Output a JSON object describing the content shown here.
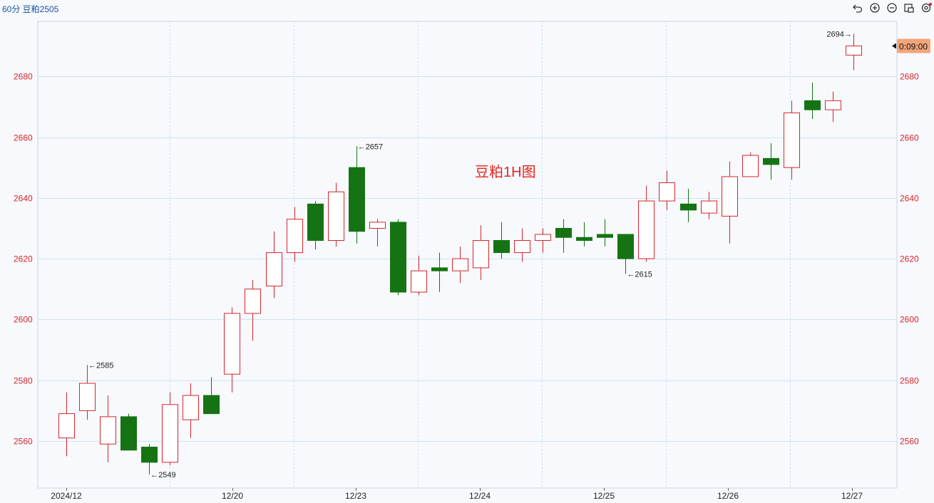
{
  "header": {
    "title": "60分 豆粕2505",
    "tools": [
      "undo-icon",
      "zoom-in-icon",
      "zoom-out-icon",
      "crop-icon",
      "settings-icon"
    ]
  },
  "watermark": "豆粕1H图",
  "colors": {
    "up": "#d4262c",
    "down": "#157313",
    "axis_text": "#d4262c",
    "date_text": "#222222",
    "grid": "#cfe3f2",
    "countdown_bg": "#f4a57c"
  },
  "countdown": "0:09:00",
  "chart_data": {
    "type": "candlestick",
    "y_ticks": [
      2560,
      2580,
      2600,
      2620,
      2640,
      2660,
      2680
    ],
    "x_labels": [
      "2024/12",
      "12/20",
      "12/23",
      "12/24",
      "12/25",
      "12/26",
      "12/27"
    ],
    "ylim": [
      2545,
      2696
    ],
    "grid": true,
    "candles": [
      {
        "o": 2561,
        "h": 2576,
        "l": 2555,
        "c": 2569
      },
      {
        "o": 2570,
        "h": 2585,
        "l": 2567,
        "c": 2579
      },
      {
        "o": 2559,
        "h": 2575,
        "l": 2553,
        "c": 2568
      },
      {
        "o": 2568,
        "h": 2569,
        "l": 2557,
        "c": 2557
      },
      {
        "o": 2558,
        "h": 2559,
        "l": 2549,
        "c": 2553
      },
      {
        "o": 2553,
        "h": 2576,
        "l": 2552,
        "c": 2572
      },
      {
        "o": 2567,
        "h": 2579,
        "l": 2561,
        "c": 2575
      },
      {
        "o": 2575,
        "h": 2581,
        "l": 2569,
        "c": 2569
      },
      {
        "o": 2582,
        "h": 2604,
        "l": 2576,
        "c": 2602
      },
      {
        "o": 2602,
        "h": 2613,
        "l": 2593,
        "c": 2610
      },
      {
        "o": 2611,
        "h": 2629,
        "l": 2607,
        "c": 2622
      },
      {
        "o": 2622,
        "h": 2637,
        "l": 2619,
        "c": 2633
      },
      {
        "o": 2638,
        "h": 2639,
        "l": 2623,
        "c": 2626
      },
      {
        "o": 2626,
        "h": 2645,
        "l": 2624,
        "c": 2642
      },
      {
        "o": 2650,
        "h": 2657,
        "l": 2625,
        "c": 2629
      },
      {
        "o": 2630,
        "h": 2633,
        "l": 2624,
        "c": 2632
      },
      {
        "o": 2632,
        "h": 2633,
        "l": 2608,
        "c": 2609
      },
      {
        "o": 2609,
        "h": 2621,
        "l": 2608,
        "c": 2616
      },
      {
        "o": 2617,
        "h": 2622,
        "l": 2609,
        "c": 2616
      },
      {
        "o": 2616,
        "h": 2624,
        "l": 2612,
        "c": 2620
      },
      {
        "o": 2617,
        "h": 2631,
        "l": 2613,
        "c": 2626
      },
      {
        "o": 2626,
        "h": 2632,
        "l": 2620,
        "c": 2622
      },
      {
        "o": 2622,
        "h": 2630,
        "l": 2619,
        "c": 2626
      },
      {
        "o": 2626,
        "h": 2630,
        "l": 2622,
        "c": 2628
      },
      {
        "o": 2630,
        "h": 2633,
        "l": 2622,
        "c": 2627
      },
      {
        "o": 2627,
        "h": 2632,
        "l": 2624,
        "c": 2626
      },
      {
        "o": 2628,
        "h": 2633,
        "l": 2624,
        "c": 2627
      },
      {
        "o": 2628,
        "h": 2628,
        "l": 2615,
        "c": 2620
      },
      {
        "o": 2620,
        "h": 2644,
        "l": 2619,
        "c": 2639
      },
      {
        "o": 2639,
        "h": 2649,
        "l": 2636,
        "c": 2645
      },
      {
        "o": 2638,
        "h": 2643,
        "l": 2632,
        "c": 2636
      },
      {
        "o": 2635,
        "h": 2642,
        "l": 2633,
        "c": 2639
      },
      {
        "o": 2634,
        "h": 2652,
        "l": 2625,
        "c": 2647
      },
      {
        "o": 2647,
        "h": 2655,
        "l": 2647,
        "c": 2654
      },
      {
        "o": 2653,
        "h": 2658,
        "l": 2646,
        "c": 2651
      },
      {
        "o": 2650,
        "h": 2672,
        "l": 2646,
        "c": 2668
      },
      {
        "o": 2672,
        "h": 2678,
        "l": 2666,
        "c": 2669
      },
      {
        "o": 2669,
        "h": 2675,
        "l": 2665,
        "c": 2672
      },
      {
        "o": 2687,
        "h": 2694,
        "l": 2682,
        "c": 2690
      }
    ],
    "annotations": [
      {
        "index": 1,
        "value": 2585,
        "text": "2585",
        "side": "right",
        "at": "high"
      },
      {
        "index": 4,
        "value": 2549,
        "text": "2549",
        "side": "right",
        "at": "low"
      },
      {
        "index": 14,
        "value": 2657,
        "text": "2657",
        "side": "right",
        "at": "high"
      },
      {
        "index": 27,
        "value": 2615,
        "text": "2615",
        "side": "right",
        "at": "low"
      },
      {
        "index": 38,
        "value": 2694,
        "text": "2694",
        "side": "left",
        "at": "high"
      }
    ],
    "current_price": 2690
  }
}
